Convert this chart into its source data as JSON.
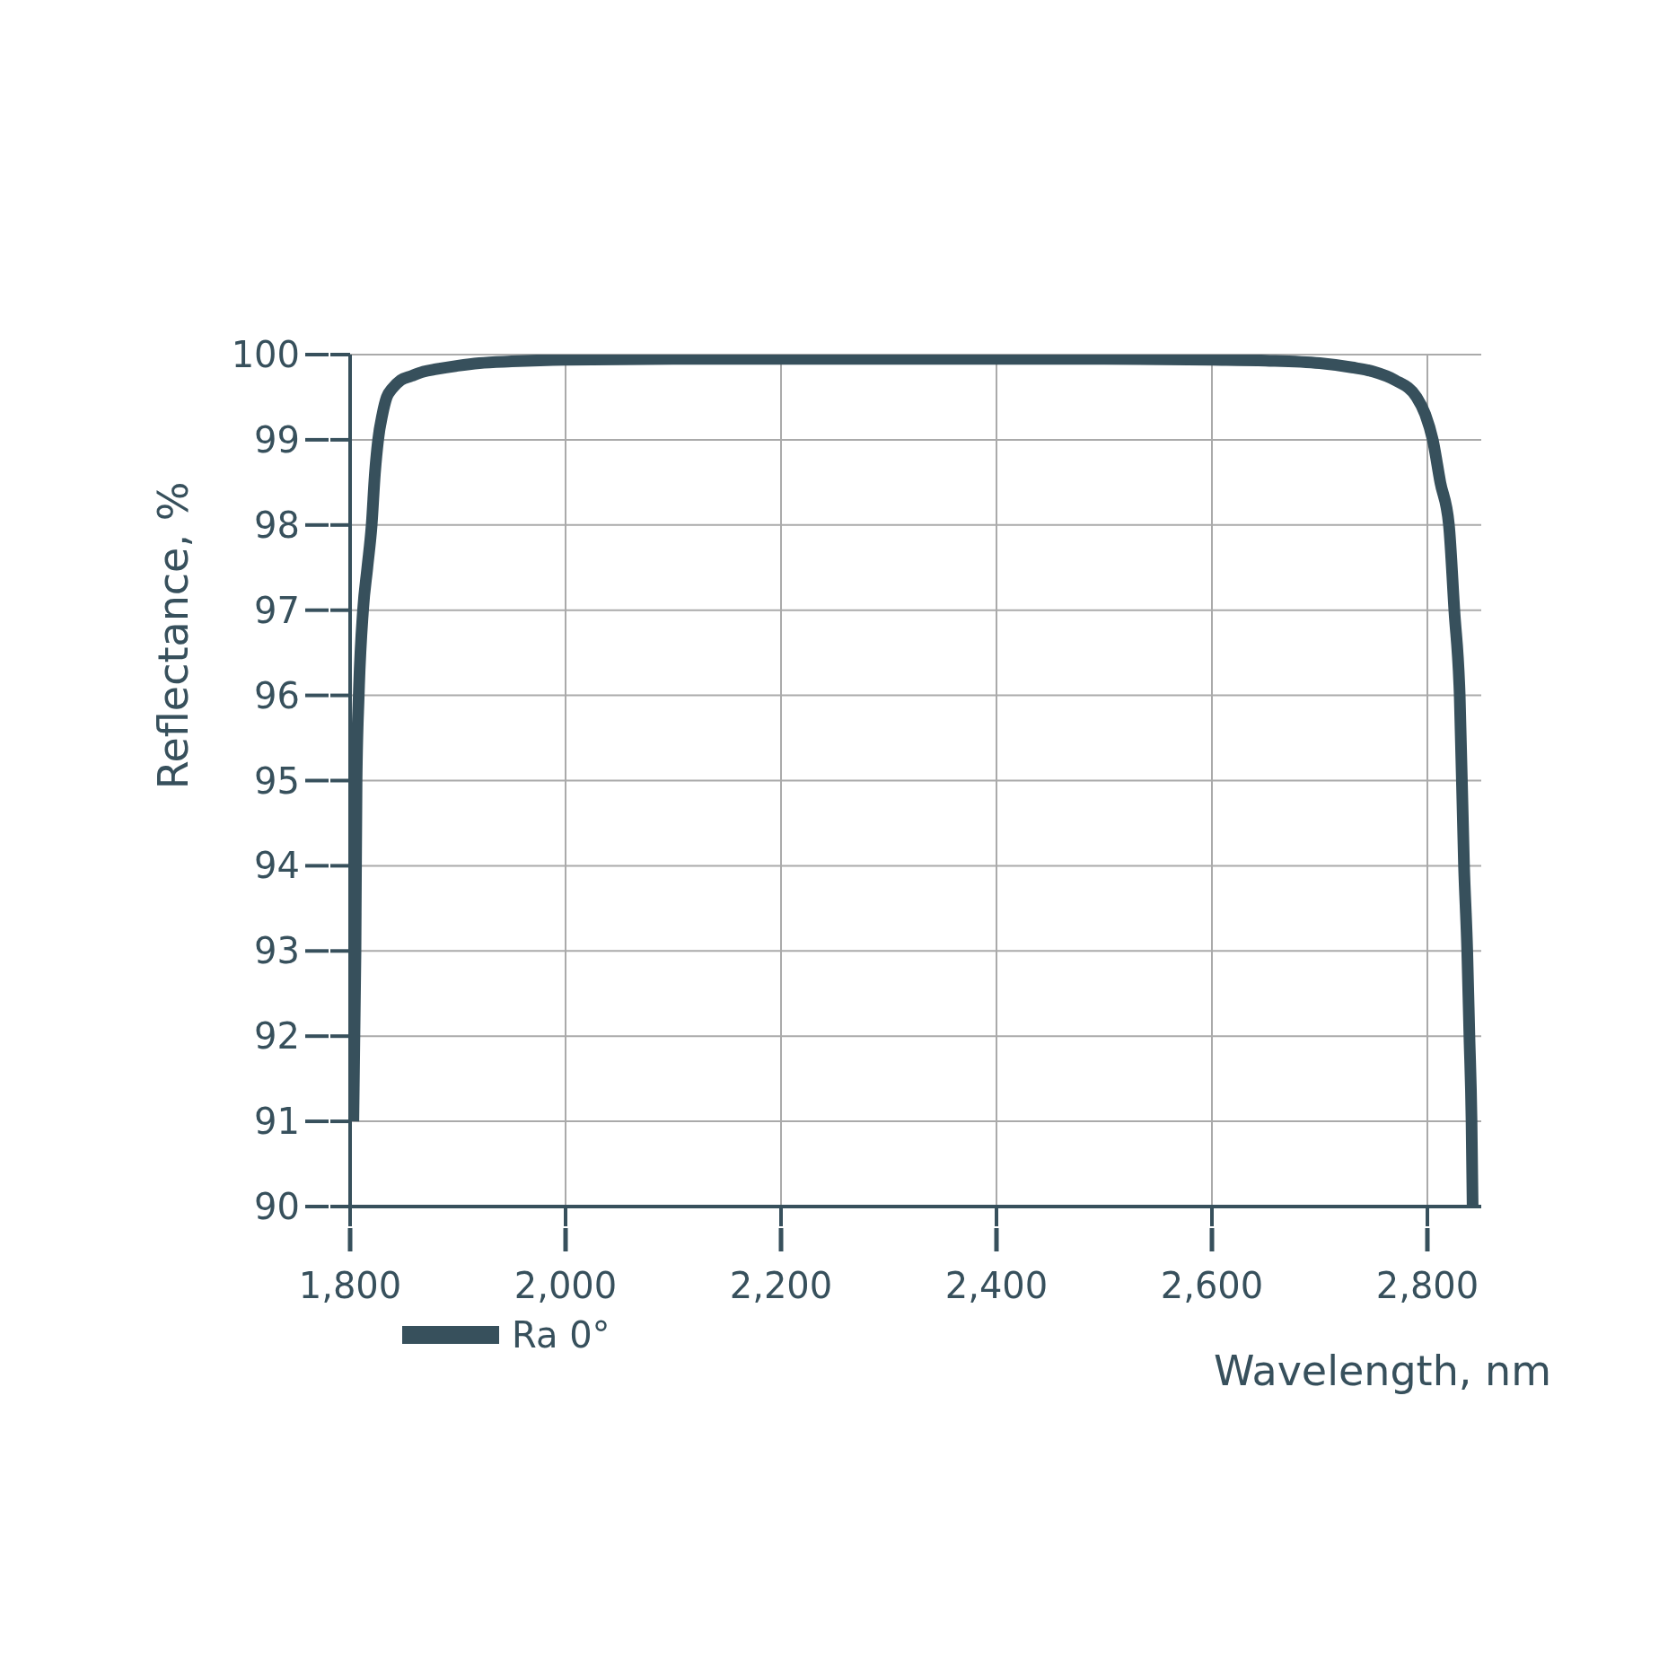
{
  "chart_data": {
    "type": "line",
    "xlabel": "Wavelength, nm",
    "ylabel": "Reflectance, %",
    "series": [
      {
        "name": "Ra 0°",
        "color": "#37505c",
        "x": [
          1803,
          1805,
          1806,
          1808,
          1812,
          1816,
          1820,
          1823,
          1826,
          1830,
          1834,
          1839,
          1847,
          1857,
          1868,
          1880,
          1900,
          1920,
          1950,
          2000,
          2100,
          2200,
          2300,
          2400,
          2500,
          2600,
          2650,
          2700,
          2730,
          2750,
          2770,
          2790,
          2798,
          2805,
          2812,
          2820,
          2825,
          2830,
          2834,
          2837,
          2839,
          2841,
          2842
        ],
        "values": [
          91,
          93,
          95,
          96,
          97,
          97.5,
          98,
          98.6,
          99,
          99.3,
          99.5,
          99.6,
          99.7,
          99.75,
          99.8,
          99.83,
          99.87,
          99.9,
          99.92,
          99.94,
          99.95,
          99.95,
          99.95,
          99.95,
          99.95,
          99.94,
          99.93,
          99.9,
          99.85,
          99.8,
          99.7,
          99.5,
          99.3,
          99,
          98.5,
          98,
          97,
          96,
          94,
          93,
          92,
          91,
          90
        ]
      }
    ],
    "xlim": [
      1800,
      2850
    ],
    "ylim": [
      90,
      100
    ],
    "xticks": [
      {
        "value": 1800,
        "label": "1,800"
      },
      {
        "value": 2000,
        "label": "2,000"
      },
      {
        "value": 2200,
        "label": "2,200"
      },
      {
        "value": 2400,
        "label": "2,400"
      },
      {
        "value": 2600,
        "label": "2,600"
      },
      {
        "value": 2800,
        "label": "2,800"
      }
    ],
    "yticks": [
      90,
      91,
      92,
      93,
      94,
      95,
      96,
      97,
      98,
      99,
      100
    ],
    "grid": true,
    "legend": "bottom left",
    "marker": "none",
    "line_style": "solid"
  }
}
